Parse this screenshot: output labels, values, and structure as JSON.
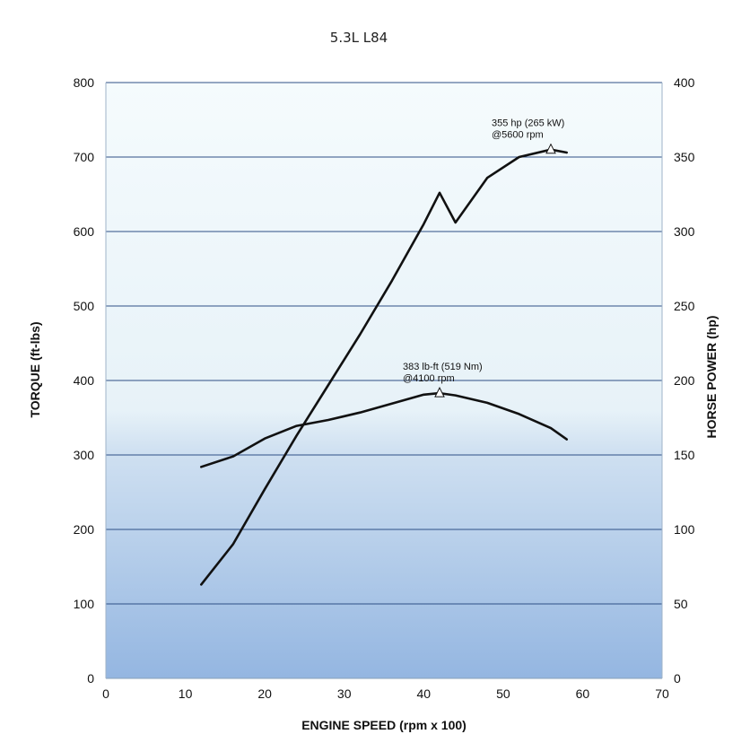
{
  "chart_data": {
    "type": "line",
    "title": "5.3L L84",
    "xlabel": "ENGINE SPEED (rpm x 100)",
    "ylabel": "TORQUE (ft-lbs)",
    "y2label": "HORSE POWER (hp)",
    "xlim": [
      0,
      70
    ],
    "ylim": [
      0,
      800
    ],
    "y2lim": [
      0,
      400
    ],
    "x_ticks": [
      "0",
      "10",
      "20",
      "30",
      "40",
      "50",
      "60",
      "70"
    ],
    "y_ticks": [
      "0",
      "100",
      "200",
      "300",
      "400",
      "500",
      "600",
      "700",
      "800"
    ],
    "y2_ticks": [
      "0",
      "50",
      "100",
      "150",
      "200",
      "250",
      "300",
      "350",
      "400"
    ],
    "grid": "horizontal",
    "series": [
      {
        "axis": "right",
        "x": [
          12,
          16,
          20,
          24,
          28,
          32,
          36,
          40,
          42,
          44,
          48,
          52,
          56,
          58
        ],
        "values": [
          63,
          90,
          127,
          163,
          197,
          231,
          267,
          305,
          326,
          306,
          336,
          350,
          355,
          353
        ]
      },
      {
        "axis": "left",
        "x": [
          12,
          16,
          20,
          24,
          28,
          32,
          36,
          40,
          42,
          44,
          48,
          52,
          56,
          58
        ],
        "values": [
          284,
          298,
          322,
          339,
          347,
          357,
          369,
          381,
          383,
          380,
          370,
          355,
          336,
          321
        ]
      }
    ],
    "annotations": [
      {
        "line1": "355 hp (265 kW)",
        "line2": "@5600 rpm",
        "x": 56,
        "y": 355,
        "axis": "right"
      },
      {
        "line1": "383 lb-ft (519 Nm)",
        "line2": "@4100 rpm",
        "x": 42,
        "y": 383,
        "axis": "left"
      }
    ],
    "colors": {
      "line": "#111111",
      "grid": "#2e4f86",
      "plot_top": "#f3fafc",
      "plot_bottom": "#98b9e2"
    }
  }
}
